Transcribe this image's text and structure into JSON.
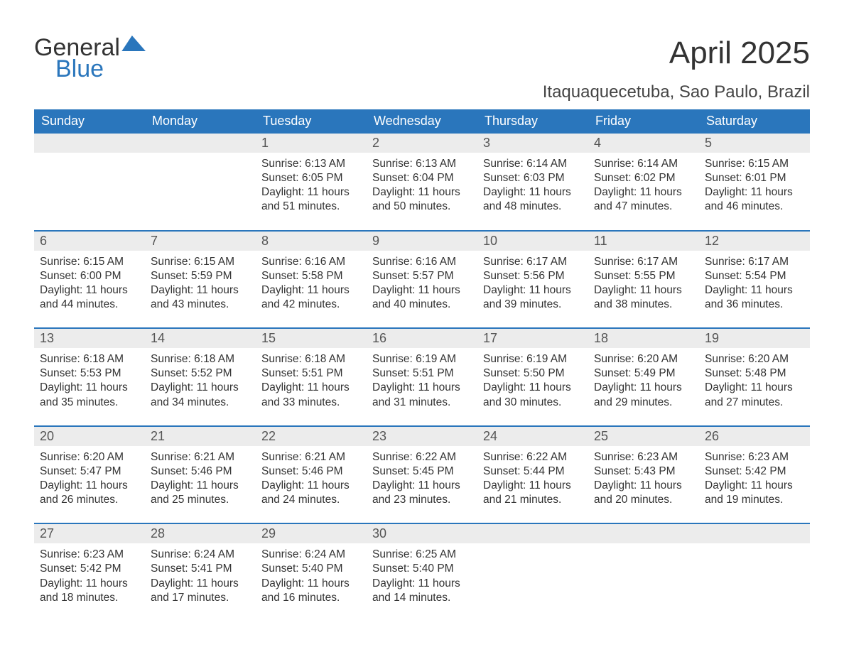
{
  "brand": {
    "part1": "General",
    "part2": "Blue"
  },
  "title": "April 2025",
  "location": "Itaquaquecetuba, Sao Paulo, Brazil",
  "colors": {
    "header_bg": "#2a76bc",
    "header_text": "#ffffff",
    "daynum_bg": "#ececec",
    "text": "#333333",
    "separator": "#2a76bc",
    "background": "#ffffff"
  },
  "typography": {
    "title_fontsize": 44,
    "location_fontsize": 24,
    "dayhead_fontsize": 18,
    "daynum_fontsize": 18,
    "body_fontsize": 15.5
  },
  "day_headers": [
    "Sunday",
    "Monday",
    "Tuesday",
    "Wednesday",
    "Thursday",
    "Friday",
    "Saturday"
  ],
  "weeks": [
    [
      null,
      null,
      {
        "n": "1",
        "sunrise": "6:13 AM",
        "sunset": "6:05 PM",
        "daylight": "11 hours and 51 minutes."
      },
      {
        "n": "2",
        "sunrise": "6:13 AM",
        "sunset": "6:04 PM",
        "daylight": "11 hours and 50 minutes."
      },
      {
        "n": "3",
        "sunrise": "6:14 AM",
        "sunset": "6:03 PM",
        "daylight": "11 hours and 48 minutes."
      },
      {
        "n": "4",
        "sunrise": "6:14 AM",
        "sunset": "6:02 PM",
        "daylight": "11 hours and 47 minutes."
      },
      {
        "n": "5",
        "sunrise": "6:15 AM",
        "sunset": "6:01 PM",
        "daylight": "11 hours and 46 minutes."
      }
    ],
    [
      {
        "n": "6",
        "sunrise": "6:15 AM",
        "sunset": "6:00 PM",
        "daylight": "11 hours and 44 minutes."
      },
      {
        "n": "7",
        "sunrise": "6:15 AM",
        "sunset": "5:59 PM",
        "daylight": "11 hours and 43 minutes."
      },
      {
        "n": "8",
        "sunrise": "6:16 AM",
        "sunset": "5:58 PM",
        "daylight": "11 hours and 42 minutes."
      },
      {
        "n": "9",
        "sunrise": "6:16 AM",
        "sunset": "5:57 PM",
        "daylight": "11 hours and 40 minutes."
      },
      {
        "n": "10",
        "sunrise": "6:17 AM",
        "sunset": "5:56 PM",
        "daylight": "11 hours and 39 minutes."
      },
      {
        "n": "11",
        "sunrise": "6:17 AM",
        "sunset": "5:55 PM",
        "daylight": "11 hours and 38 minutes."
      },
      {
        "n": "12",
        "sunrise": "6:17 AM",
        "sunset": "5:54 PM",
        "daylight": "11 hours and 36 minutes."
      }
    ],
    [
      {
        "n": "13",
        "sunrise": "6:18 AM",
        "sunset": "5:53 PM",
        "daylight": "11 hours and 35 minutes."
      },
      {
        "n": "14",
        "sunrise": "6:18 AM",
        "sunset": "5:52 PM",
        "daylight": "11 hours and 34 minutes."
      },
      {
        "n": "15",
        "sunrise": "6:18 AM",
        "sunset": "5:51 PM",
        "daylight": "11 hours and 33 minutes."
      },
      {
        "n": "16",
        "sunrise": "6:19 AM",
        "sunset": "5:51 PM",
        "daylight": "11 hours and 31 minutes."
      },
      {
        "n": "17",
        "sunrise": "6:19 AM",
        "sunset": "5:50 PM",
        "daylight": "11 hours and 30 minutes."
      },
      {
        "n": "18",
        "sunrise": "6:20 AM",
        "sunset": "5:49 PM",
        "daylight": "11 hours and 29 minutes."
      },
      {
        "n": "19",
        "sunrise": "6:20 AM",
        "sunset": "5:48 PM",
        "daylight": "11 hours and 27 minutes."
      }
    ],
    [
      {
        "n": "20",
        "sunrise": "6:20 AM",
        "sunset": "5:47 PM",
        "daylight": "11 hours and 26 minutes."
      },
      {
        "n": "21",
        "sunrise": "6:21 AM",
        "sunset": "5:46 PM",
        "daylight": "11 hours and 25 minutes."
      },
      {
        "n": "22",
        "sunrise": "6:21 AM",
        "sunset": "5:46 PM",
        "daylight": "11 hours and 24 minutes."
      },
      {
        "n": "23",
        "sunrise": "6:22 AM",
        "sunset": "5:45 PM",
        "daylight": "11 hours and 23 minutes."
      },
      {
        "n": "24",
        "sunrise": "6:22 AM",
        "sunset": "5:44 PM",
        "daylight": "11 hours and 21 minutes."
      },
      {
        "n": "25",
        "sunrise": "6:23 AM",
        "sunset": "5:43 PM",
        "daylight": "11 hours and 20 minutes."
      },
      {
        "n": "26",
        "sunrise": "6:23 AM",
        "sunset": "5:42 PM",
        "daylight": "11 hours and 19 minutes."
      }
    ],
    [
      {
        "n": "27",
        "sunrise": "6:23 AM",
        "sunset": "5:42 PM",
        "daylight": "11 hours and 18 minutes."
      },
      {
        "n": "28",
        "sunrise": "6:24 AM",
        "sunset": "5:41 PM",
        "daylight": "11 hours and 17 minutes."
      },
      {
        "n": "29",
        "sunrise": "6:24 AM",
        "sunset": "5:40 PM",
        "daylight": "11 hours and 16 minutes."
      },
      {
        "n": "30",
        "sunrise": "6:25 AM",
        "sunset": "5:40 PM",
        "daylight": "11 hours and 14 minutes."
      },
      null,
      null,
      null
    ]
  ],
  "labels": {
    "sunrise": "Sunrise:",
    "sunset": "Sunset:",
    "daylight": "Daylight:"
  }
}
